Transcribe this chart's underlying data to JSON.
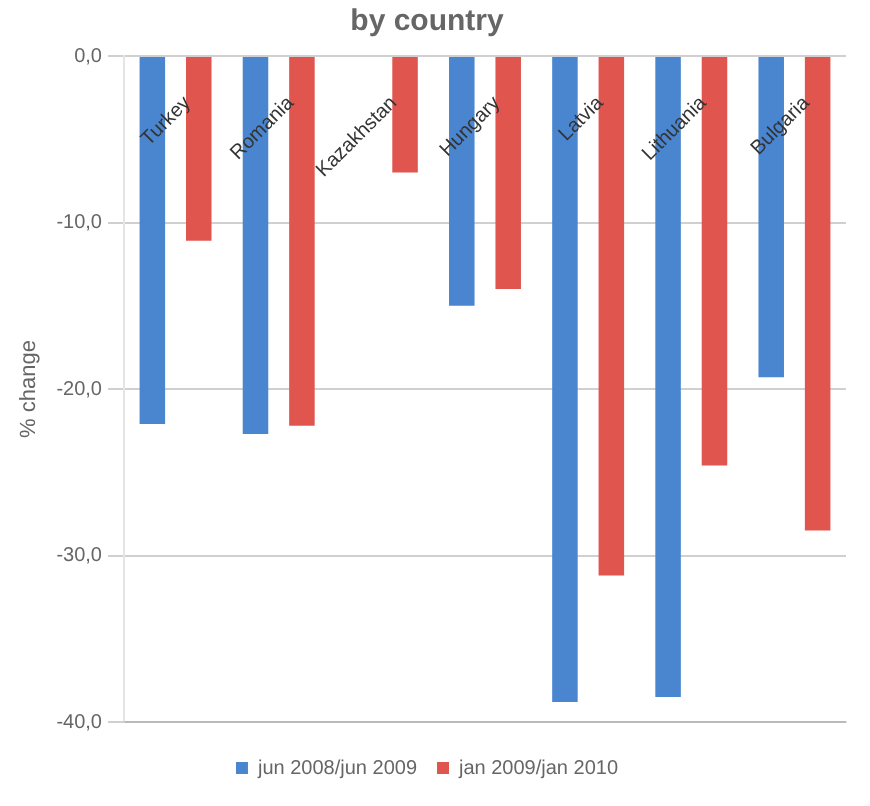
{
  "chart_data": {
    "type": "bar",
    "title": "by country",
    "ylabel": "% change",
    "categories": [
      "Turkey",
      "Romania",
      "Kazakhstan",
      "Hungary",
      "Latvia",
      "Lithuania",
      "Bulgaria"
    ],
    "series": [
      {
        "name": "jun 2008/jun 2009",
        "color": "#4a86d0",
        "values": [
          -22.1,
          -22.7,
          null,
          -15.0,
          -38.8,
          -38.5,
          -19.3
        ]
      },
      {
        "name": "jan 2009/jan 2010",
        "color": "#e0564f",
        "values": [
          -11.1,
          -22.2,
          -7.0,
          -14.0,
          -31.2,
          -24.6,
          -28.5
        ]
      }
    ],
    "ylim": [
      -40,
      0
    ],
    "yticks": [
      {
        "value": 0,
        "label": "0,0"
      },
      {
        "value": -10,
        "label": "-10,0"
      },
      {
        "value": -20,
        "label": "-20,0"
      },
      {
        "value": -30,
        "label": "-30,0"
      },
      {
        "value": -40,
        "label": "-40,0"
      }
    ],
    "grid": "y",
    "legend": "bottom"
  }
}
